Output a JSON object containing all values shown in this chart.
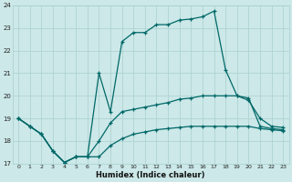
{
  "xlabel": "Humidex (Indice chaleur)",
  "bg_color": "#cce8e8",
  "grid_color": "#aacfcf",
  "line_color": "#006868",
  "xlim": [
    -0.5,
    23.5
  ],
  "ylim": [
    17,
    24
  ],
  "yticks": [
    17,
    18,
    19,
    20,
    21,
    22,
    23,
    24
  ],
  "xticks": [
    0,
    1,
    2,
    3,
    4,
    5,
    6,
    7,
    8,
    9,
    10,
    11,
    12,
    13,
    14,
    15,
    16,
    17,
    18,
    19,
    20,
    21,
    22,
    23
  ],
  "series_main_x": [
    0,
    1,
    2,
    3,
    4,
    5,
    6,
    7,
    8,
    9,
    10,
    11,
    12,
    13,
    14,
    15,
    16,
    17,
    18,
    19,
    20,
    21,
    22,
    23
  ],
  "series_main_y": [
    19.0,
    18.65,
    18.3,
    17.55,
    17.05,
    17.3,
    17.3,
    21.0,
    19.3,
    22.4,
    22.8,
    22.8,
    23.15,
    23.15,
    23.35,
    23.4,
    23.5,
    23.75,
    21.15,
    20.0,
    19.8,
    19.0,
    18.65,
    18.6
  ],
  "series_mid_x": [
    0,
    1,
    2,
    3,
    4,
    5,
    6,
    7,
    8,
    9,
    10,
    11,
    12,
    13,
    14,
    15,
    16,
    17,
    18,
    19,
    20,
    21,
    22,
    23
  ],
  "series_mid_y": [
    19.0,
    18.65,
    18.3,
    17.55,
    17.05,
    17.3,
    17.3,
    18.0,
    18.8,
    19.3,
    19.4,
    19.5,
    19.6,
    19.7,
    19.85,
    19.9,
    20.0,
    20.0,
    20.0,
    20.0,
    19.9,
    18.65,
    18.55,
    18.5
  ],
  "series_low_x": [
    0,
    1,
    2,
    3,
    4,
    5,
    6,
    7,
    8,
    9,
    10,
    11,
    12,
    13,
    14,
    15,
    16,
    17,
    18,
    19,
    20,
    21,
    22,
    23
  ],
  "series_low_y": [
    19.0,
    18.65,
    18.3,
    17.55,
    17.05,
    17.3,
    17.3,
    17.3,
    17.8,
    18.1,
    18.3,
    18.4,
    18.5,
    18.55,
    18.6,
    18.65,
    18.65,
    18.65,
    18.65,
    18.65,
    18.65,
    18.55,
    18.5,
    18.45
  ]
}
